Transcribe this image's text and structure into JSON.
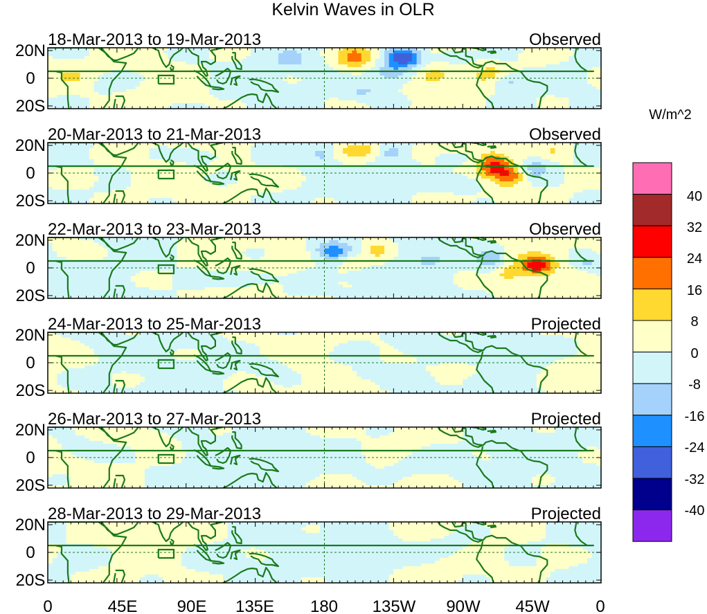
{
  "title": "Kelvin Waves in OLR",
  "units_label": "W/m^2",
  "lat_labels": [
    "20N",
    "0",
    "20S"
  ],
  "lon_labels": [
    "0",
    "45E",
    "90E",
    "135E",
    "180",
    "135W",
    "90W",
    "45W",
    "0"
  ],
  "panels": [
    {
      "date_range": "18-Mar-2013 to 19-Mar-2013",
      "kind": "Observed",
      "intensity": 1.0,
      "phase": 0
    },
    {
      "date_range": "20-Mar-2013 to 21-Mar-2013",
      "kind": "Observed",
      "intensity": 1.0,
      "phase": 1
    },
    {
      "date_range": "22-Mar-2013 to 23-Mar-2013",
      "kind": "Observed",
      "intensity": 1.0,
      "phase": 2
    },
    {
      "date_range": "24-Mar-2013 to 25-Mar-2013",
      "kind": "Projected",
      "intensity": 0.55,
      "phase": 3
    },
    {
      "date_range": "26-Mar-2013 to 27-Mar-2013",
      "kind": "Projected",
      "intensity": 0.2,
      "phase": 4
    },
    {
      "date_range": "28-Mar-2013 to 29-Mar-2013",
      "kind": "Projected",
      "intensity": 0.15,
      "phase": 5
    }
  ],
  "colorbar": {
    "labels": [
      "40",
      "32",
      "24",
      "16",
      "8",
      "0",
      "-8",
      "-16",
      "-24",
      "-32",
      "-40"
    ],
    "colors": [
      "#ff6eb4",
      "#a32a2a",
      "#ff0000",
      "#ff7000",
      "#ffd830",
      "#ffffc8",
      "#d2f5fa",
      "#a4d2fa",
      "#1e90ff",
      "#4060dc",
      "#00008c",
      "#8c28ee"
    ]
  },
  "colors": {
    "coast": "#1a7a1a",
    "frame": "#000000",
    "zero_line": "#1a7a1a"
  }
}
